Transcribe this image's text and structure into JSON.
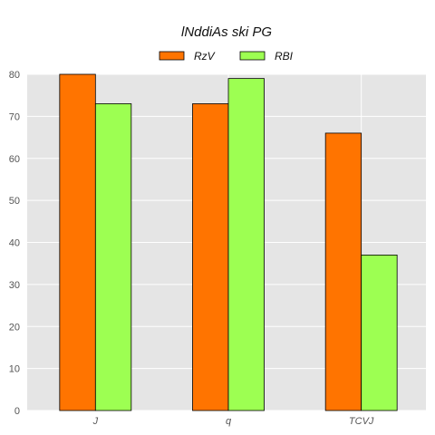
{
  "chart_data": {
    "type": "bar",
    "title": "lNddiAs ski PG",
    "xlabel": "",
    "ylabel": "",
    "categories": [
      "J",
      "q",
      "TCVJ"
    ],
    "series": [
      {
        "name": "RzV",
        "values": [
          80,
          73,
          66
        ],
        "color": "#ff7400"
      },
      {
        "name": "RBI",
        "values": [
          73,
          79,
          37
        ],
        "color": "#9dff52"
      }
    ],
    "ylim": [
      0,
      80
    ],
    "yticks": [
      0,
      10,
      20,
      30,
      40,
      50,
      60,
      70,
      80
    ],
    "grid": true,
    "legend_position": "top-center",
    "plot_background": "#e5e5e5",
    "grid_color": "#ffffff",
    "bar_edge_color": "#000000"
  }
}
